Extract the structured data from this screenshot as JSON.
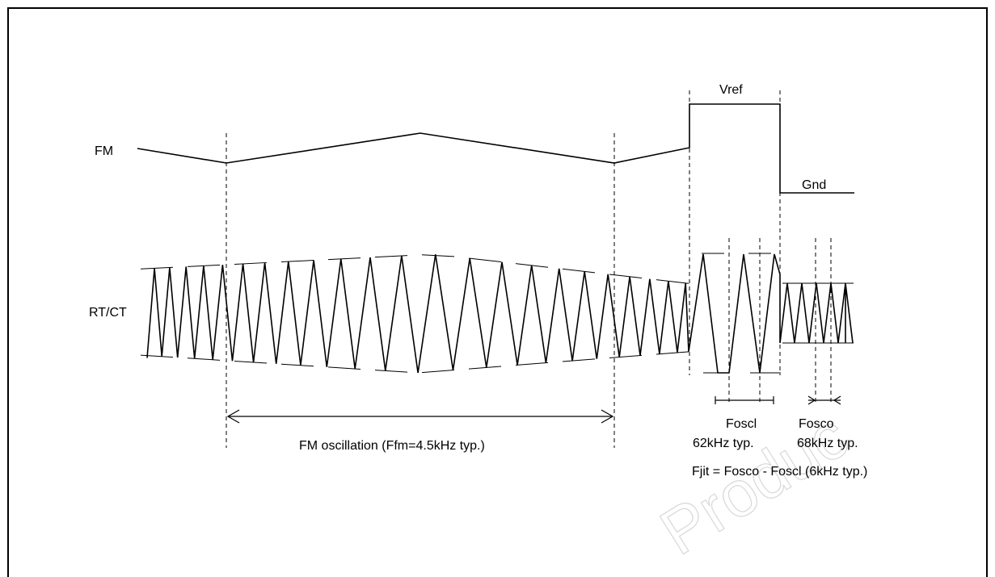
{
  "signals": {
    "fm_label": "FM",
    "rtct_label": "RT/CT"
  },
  "levels": {
    "vref": "Vref",
    "gnd": "Gnd"
  },
  "annotations": {
    "fm_oscillation": "FM oscillation (Ffm=4.5kHz typ.)",
    "foscl_name": "Foscl",
    "foscl_value": "62kHz typ.",
    "fosco_name": "Fosco",
    "fosco_value": "68kHz typ.",
    "fjit": "Fjit = Fosco - Foscl (6kHz typ.)"
  },
  "watermark": "Produc",
  "colors": {
    "line": "#000000",
    "background": "#ffffff",
    "watermark": "#d8d8d8"
  }
}
